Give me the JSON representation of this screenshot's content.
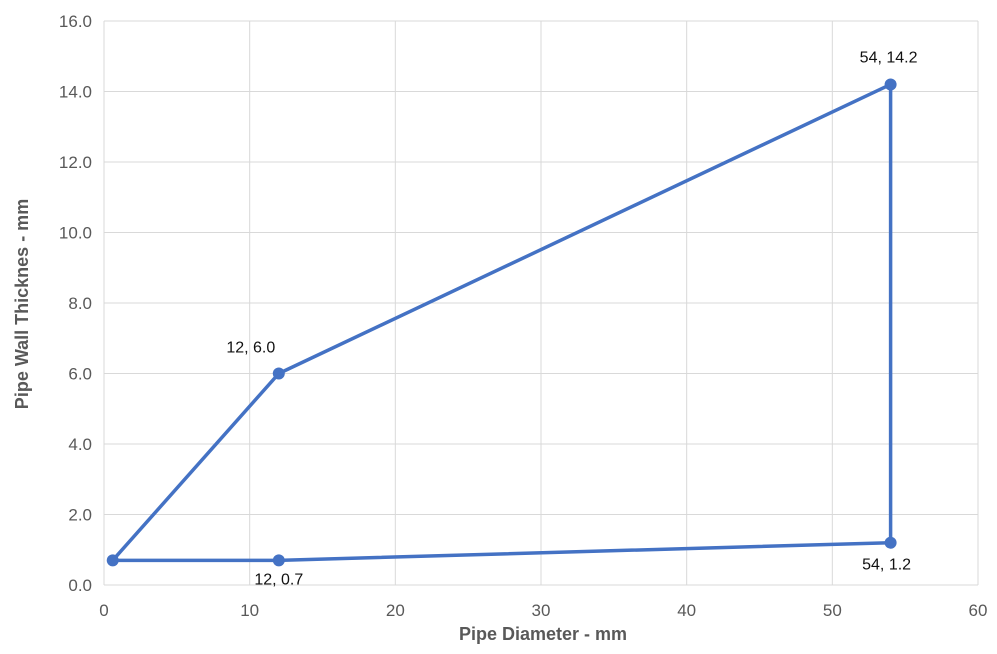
{
  "chart_data": {
    "type": "scatter",
    "title": "",
    "xlabel": "Pipe Diameter - mm",
    "ylabel": "Pipe Wall Thicknes - mm",
    "xlim": [
      0,
      60
    ],
    "ylim": [
      0,
      16
    ],
    "x_ticks": [
      "0",
      "10",
      "20",
      "30",
      "40",
      "50",
      "60"
    ],
    "y_ticks": [
      "0.0",
      "2.0",
      "4.0",
      "6.0",
      "8.0",
      "10.0",
      "12.0",
      "14.0",
      "16.0"
    ],
    "grid": true,
    "legend": "none",
    "line_color": "#4472c4",
    "series": [
      {
        "points": [
          {
            "x": 0.6,
            "y": 0.7,
            "label": ""
          },
          {
            "x": 12,
            "y": 6.0,
            "label": "12, 6.0"
          },
          {
            "x": 54,
            "y": 14.2,
            "label": "54, 14.2"
          },
          {
            "x": 54,
            "y": 1.2,
            "label": "54, 1.2"
          },
          {
            "x": 12,
            "y": 0.7,
            "label": "12, 0.7"
          },
          {
            "x": 0.6,
            "y": 0.7,
            "label": ""
          }
        ]
      }
    ]
  }
}
